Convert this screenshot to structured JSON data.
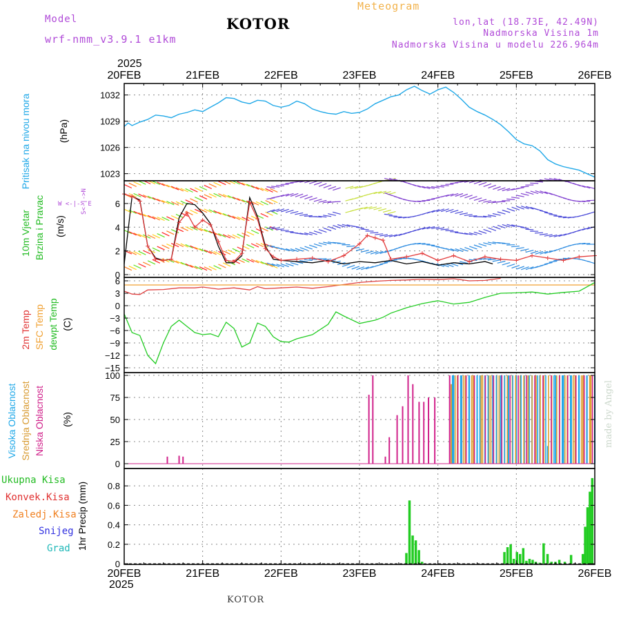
{
  "header": {
    "model_label": "Model",
    "model_name": "wrf-nmm_v3.9.1 e1km",
    "station": "KOTOR",
    "meteogram": "Meteogram",
    "lonlat": "lon,lat (18.73E, 42.49N)",
    "elevation": "Nadmorska Visina 1m",
    "model_elevation": "Nadmorska Visina u modelu 226.964m",
    "year_top": "2025",
    "year_bottom": "2025",
    "footer_station": "KOTOR",
    "credit": "made by Angel"
  },
  "colors": {
    "pressure": "#1fa8e8",
    "wind_speed_black": "#000000",
    "wind_gust_red": "#e23a3a",
    "temp_2m": "#e04040",
    "sfc_temp": "#f0a030",
    "dewpoint": "#22cc22",
    "cloud_high": "#1fa8e8",
    "cloud_mid": "#e0a030",
    "cloud_low": "#d0208a",
    "precip_total": "#22cc22",
    "label_green": "#22bb22",
    "label_red": "#e03030",
    "label_orange": "#f08020",
    "label_blue": "#3030e0",
    "label_cyan": "#20b8b8",
    "label_purple": "#b04ad8"
  },
  "xaxis": {
    "top_ticks": [
      "20FEB",
      "21FEB",
      "22FEB",
      "23FEB",
      "24FEB",
      "25FEB",
      "26FEB"
    ],
    "bottom_ticks": [
      "20FEB",
      "21FEB",
      "22FEB",
      "23FEB",
      "24FEB",
      "25FEB",
      "26FEB"
    ]
  },
  "panels": {
    "pressure": {
      "side_label": "Pritisak na nivou mora",
      "unit": "(hPa)",
      "yticks": [
        "1032",
        "1029",
        "1026",
        "1023"
      ]
    },
    "wind": {
      "side_label_1": "10m Vjetar",
      "side_label_2": "Brzina i Pravac",
      "unit": "(m/s)",
      "compass": "W <-|-> E",
      "compass_v": "S<-|->N",
      "yticks": [
        "6",
        "4",
        "2",
        "0"
      ]
    },
    "temp": {
      "label_2m": "2m Temp",
      "label_sfc": "SFC Temp",
      "label_dew": "dewpt Temp",
      "unit": "(C)",
      "yticks": [
        "6",
        "3",
        "0",
        "−3",
        "−6",
        "−9",
        "−12",
        "−15"
      ]
    },
    "cloud": {
      "label_high": "Visoka Oblacnost",
      "label_mid": "Srednja Oblacnost",
      "label_low": "Niska Oblacnost",
      "unit": "(%)",
      "yticks": [
        "100",
        "75",
        "50",
        "25",
        "0"
      ]
    },
    "precip": {
      "label_total": "Ukupna Kisa",
      "label_conv": "Konvek.Kisa",
      "label_frz": "Zaledj.Kisa",
      "label_snow": "Snijeg",
      "label_grad": "Grad",
      "unit": "1hr Precip (mm)",
      "yticks": [
        "0.8",
        "0.6",
        "0.4",
        "0.2",
        "0"
      ]
    }
  },
  "chart_data": [
    {
      "type": "line",
      "title": "Pritisak na nivou mora",
      "ylabel": "(hPa)",
      "x_unit": "days since 20FEB 00Z",
      "ylim": [
        1022.5,
        1033.0
      ],
      "series": [
        {
          "name": "Pritisak na nivou mora",
          "x": [
            0,
            0.05,
            0.1,
            0.2,
            0.3,
            0.4,
            0.5,
            0.6,
            0.7,
            0.8,
            0.9,
            1.0,
            1.1,
            1.2,
            1.3,
            1.4,
            1.5,
            1.6,
            1.7,
            1.8,
            1.9,
            2.0,
            2.1,
            2.2,
            2.3,
            2.4,
            2.5,
            2.6,
            2.7,
            2.8,
            2.9,
            3.0,
            3.1,
            3.2,
            3.3,
            3.4,
            3.5,
            3.6,
            3.7,
            3.8,
            3.9,
            4.0,
            4.1,
            4.2,
            4.3,
            4.4,
            4.5,
            4.6,
            4.7,
            4.8,
            4.9,
            5.0,
            5.1,
            5.2,
            5.3,
            5.4,
            5.5,
            5.6,
            5.7,
            5.8,
            5.9,
            6.0
          ],
          "values": [
            1028.4,
            1028.8,
            1028.5,
            1028.9,
            1029.2,
            1029.7,
            1029.6,
            1029.4,
            1029.8,
            1030.0,
            1030.3,
            1030.1,
            1030.6,
            1031.1,
            1031.7,
            1031.6,
            1031.2,
            1031.0,
            1031.4,
            1031.3,
            1030.8,
            1030.6,
            1030.8,
            1031.3,
            1031.0,
            1030.4,
            1030.1,
            1029.9,
            1029.8,
            1030.1,
            1029.9,
            1030.0,
            1030.4,
            1031.0,
            1031.4,
            1031.8,
            1032.0,
            1032.6,
            1033.0,
            1032.5,
            1032.1,
            1032.6,
            1032.9,
            1032.3,
            1031.5,
            1030.6,
            1030.1,
            1029.7,
            1029.2,
            1028.6,
            1027.8,
            1026.9,
            1026.4,
            1026.2,
            1025.6,
            1024.6,
            1024.1,
            1023.8,
            1023.6,
            1023.4,
            1023.0,
            1022.6
          ]
        }
      ]
    },
    {
      "type": "line",
      "title": "10m Vjetar Brzina i Pravac",
      "ylabel": "(m/s)",
      "x_unit": "days since 20FEB 00Z",
      "ylim": [
        0,
        7.8
      ],
      "series": [
        {
          "name": "speed",
          "x": [
            0,
            0.1,
            0.2,
            0.3,
            0.4,
            0.5,
            0.6,
            0.7,
            0.8,
            0.9,
            1.0,
            1.1,
            1.2,
            1.3,
            1.4,
            1.5,
            1.6,
            1.7,
            1.8,
            1.9,
            2.0,
            2.2,
            2.4,
            2.6,
            2.8,
            3.0,
            3.2,
            3.4,
            3.6,
            3.8,
            4.0,
            4.2,
            4.4,
            4.6,
            4.7
          ],
          "values": [
            0.9,
            6.6,
            6.3,
            2.4,
            1.4,
            1.2,
            1.3,
            4.8,
            6.0,
            5.9,
            5.2,
            4.3,
            2.4,
            1.0,
            1.0,
            1.6,
            6.5,
            4.9,
            2.4,
            1.3,
            1.2,
            1.1,
            1.0,
            1.2,
            0.9,
            1.1,
            1.0,
            1.2,
            0.9,
            1.1,
            0.8,
            1.0,
            0.9,
            1.1,
            0.9
          ]
        },
        {
          "name": "gust",
          "x": [
            0,
            0.1,
            0.2,
            0.3,
            0.4,
            0.5,
            0.6,
            0.7,
            0.8,
            0.9,
            1.0,
            1.1,
            1.2,
            1.3,
            1.4,
            1.5,
            1.6,
            1.7,
            1.8,
            1.9,
            2.0,
            2.2,
            2.4,
            2.6,
            2.8,
            3.0,
            3.1,
            3.2,
            3.3,
            3.4,
            3.6,
            3.8,
            4.0,
            4.2,
            4.4,
            4.6,
            4.8,
            5.0,
            5.2,
            5.4,
            5.6,
            5.8,
            6.0
          ],
          "values": [
            6.8,
            6.6,
            6.2,
            2.4,
            1.3,
            1.2,
            1.3,
            4.4,
            5.2,
            4.0,
            4.6,
            4.2,
            2.8,
            1.2,
            1.1,
            1.8,
            6.1,
            4.7,
            2.2,
            1.5,
            1.2,
            1.3,
            1.4,
            1.1,
            1.6,
            2.6,
            3.3,
            3.1,
            2.9,
            1.3,
            1.5,
            1.8,
            1.2,
            1.6,
            1.1,
            1.5,
            1.3,
            1.2,
            1.6,
            1.4,
            1.2,
            1.5,
            1.6
          ]
        }
      ]
    },
    {
      "type": "line",
      "title": "Temperatura",
      "ylabel": "(C)",
      "x_unit": "days since 20FEB 00Z",
      "ylim": [
        -15.5,
        6.5
      ],
      "series": [
        {
          "name": "2m Temp",
          "x": [
            0,
            0.1,
            0.2,
            0.3,
            0.5,
            0.7,
            0.9,
            1.0,
            1.2,
            1.4,
            1.6,
            1.7,
            1.8,
            2.0,
            2.2,
            2.4,
            2.6,
            2.8,
            3.0,
            3.2,
            3.4,
            3.6,
            3.8,
            4.0,
            4.2,
            4.4,
            4.6,
            4.8
          ],
          "values": [
            3.5,
            2.8,
            2.7,
            3.8,
            3.9,
            4.3,
            4.3,
            4.5,
            4.0,
            4.3,
            3.8,
            4.6,
            4.1,
            4.3,
            4.5,
            4.2,
            4.6,
            5.1,
            5.6,
            5.9,
            6.1,
            6.2,
            6.4,
            6.3,
            6.5,
            6.0,
            6.1,
            6.6
          ]
        },
        {
          "name": "SFC Temp",
          "x": [
            0,
            6
          ],
          "values": [
            5.0,
            5.0
          ]
        },
        {
          "name": "dewpt Temp",
          "x": [
            0,
            0.1,
            0.2,
            0.3,
            0.4,
            0.5,
            0.6,
            0.7,
            0.8,
            0.9,
            1.0,
            1.1,
            1.2,
            1.3,
            1.4,
            1.5,
            1.6,
            1.7,
            1.8,
            1.9,
            2.0,
            2.1,
            2.2,
            2.4,
            2.6,
            2.7,
            2.8,
            3.0,
            3.2,
            3.3,
            3.4,
            3.6,
            3.8,
            4.0,
            4.2,
            4.4,
            4.6,
            4.8,
            5.0,
            5.2,
            5.4,
            5.6,
            5.8,
            6.0
          ],
          "values": [
            -2,
            -6.5,
            -7.2,
            -12,
            -14,
            -9,
            -5,
            -3.5,
            -5,
            -6.5,
            -7,
            -6.8,
            -7.5,
            -4,
            -5.5,
            -10,
            -9,
            -4.2,
            -5,
            -7.5,
            -8.7,
            -8.8,
            -8,
            -7,
            -4.5,
            -1.5,
            -2.5,
            -4.3,
            -3.5,
            -2.8,
            -1.8,
            -0.5,
            0.5,
            1.2,
            0.4,
            0.8,
            2.0,
            3.0,
            3.1,
            3.3,
            2.8,
            3.2,
            3.5,
            5.6
          ]
        }
      ]
    },
    {
      "type": "bar",
      "title": "Oblacnost",
      "ylabel": "(%)",
      "x_unit": "days since 20FEB 00Z",
      "ylim": [
        0,
        100
      ],
      "series": [
        {
          "name": "Niska Oblacnost",
          "x": [
            0.55,
            0.7,
            0.75,
            3.12,
            3.17,
            3.33,
            3.38,
            3.48,
            3.55,
            3.62,
            3.68,
            3.76,
            3.82,
            3.88,
            3.96,
            4.15,
            4.3,
            4.5,
            4.7,
            4.9,
            5.1,
            5.3,
            5.6,
            5.9
          ],
          "values": [
            8,
            9,
            8,
            78,
            100,
            8,
            30,
            55,
            65,
            100,
            90,
            70,
            70,
            75,
            75,
            100,
            100,
            100,
            100,
            100,
            100,
            100,
            100,
            100
          ]
        },
        {
          "name": "Srednja Oblacnost",
          "x": [
            4.17,
            4.25,
            4.35,
            4.45,
            4.55,
            4.65,
            4.75,
            4.85,
            4.95,
            5.05,
            5.15,
            5.25,
            5.35,
            5.45,
            5.55,
            5.65,
            5.75,
            5.85,
            5.95
          ],
          "values": [
            90,
            100,
            100,
            100,
            100,
            100,
            100,
            100,
            100,
            100,
            100,
            100,
            100,
            100,
            100,
            100,
            100,
            100,
            100
          ]
        },
        {
          "name": "Visoka Oblacnost",
          "x": [
            4.2,
            4.3,
            4.4,
            4.5,
            4.6,
            4.7,
            4.8,
            4.9,
            5.0,
            5.1,
            5.2,
            5.3,
            5.4,
            5.5,
            5.6,
            5.7,
            5.8,
            5.9,
            6.0
          ],
          "values": [
            100,
            100,
            100,
            100,
            100,
            100,
            100,
            100,
            100,
            100,
            100,
            100,
            20,
            100,
            100,
            100,
            100,
            100,
            100
          ]
        }
      ]
    },
    {
      "type": "bar",
      "title": "1hr Precip",
      "ylabel": "1hr Precip (mm)",
      "x_unit": "days since 20FEB 00Z",
      "ylim": [
        0,
        0.95
      ],
      "series": [
        {
          "name": "Ukupna Kisa",
          "x": [
            3.6,
            3.64,
            3.68,
            3.72,
            3.76,
            3.8,
            4.85,
            4.89,
            4.93,
            4.97,
            5.01,
            5.05,
            5.09,
            5.13,
            5.17,
            5.21,
            5.25,
            5.3,
            5.35,
            5.4,
            5.45,
            5.5,
            5.55,
            5.62,
            5.7,
            5.85,
            5.88,
            5.91,
            5.94,
            5.97
          ],
          "values": [
            0.11,
            0.65,
            0.29,
            0.24,
            0.14,
            0.02,
            0.12,
            0.17,
            0.2,
            0.05,
            0.12,
            0.1,
            0.16,
            0.03,
            0.05,
            0.04,
            0.02,
            0.01,
            0.21,
            0.1,
            0.02,
            0.02,
            0.04,
            0.02,
            0.09,
            0.1,
            0.38,
            0.58,
            0.74,
            0.88
          ]
        }
      ]
    }
  ]
}
